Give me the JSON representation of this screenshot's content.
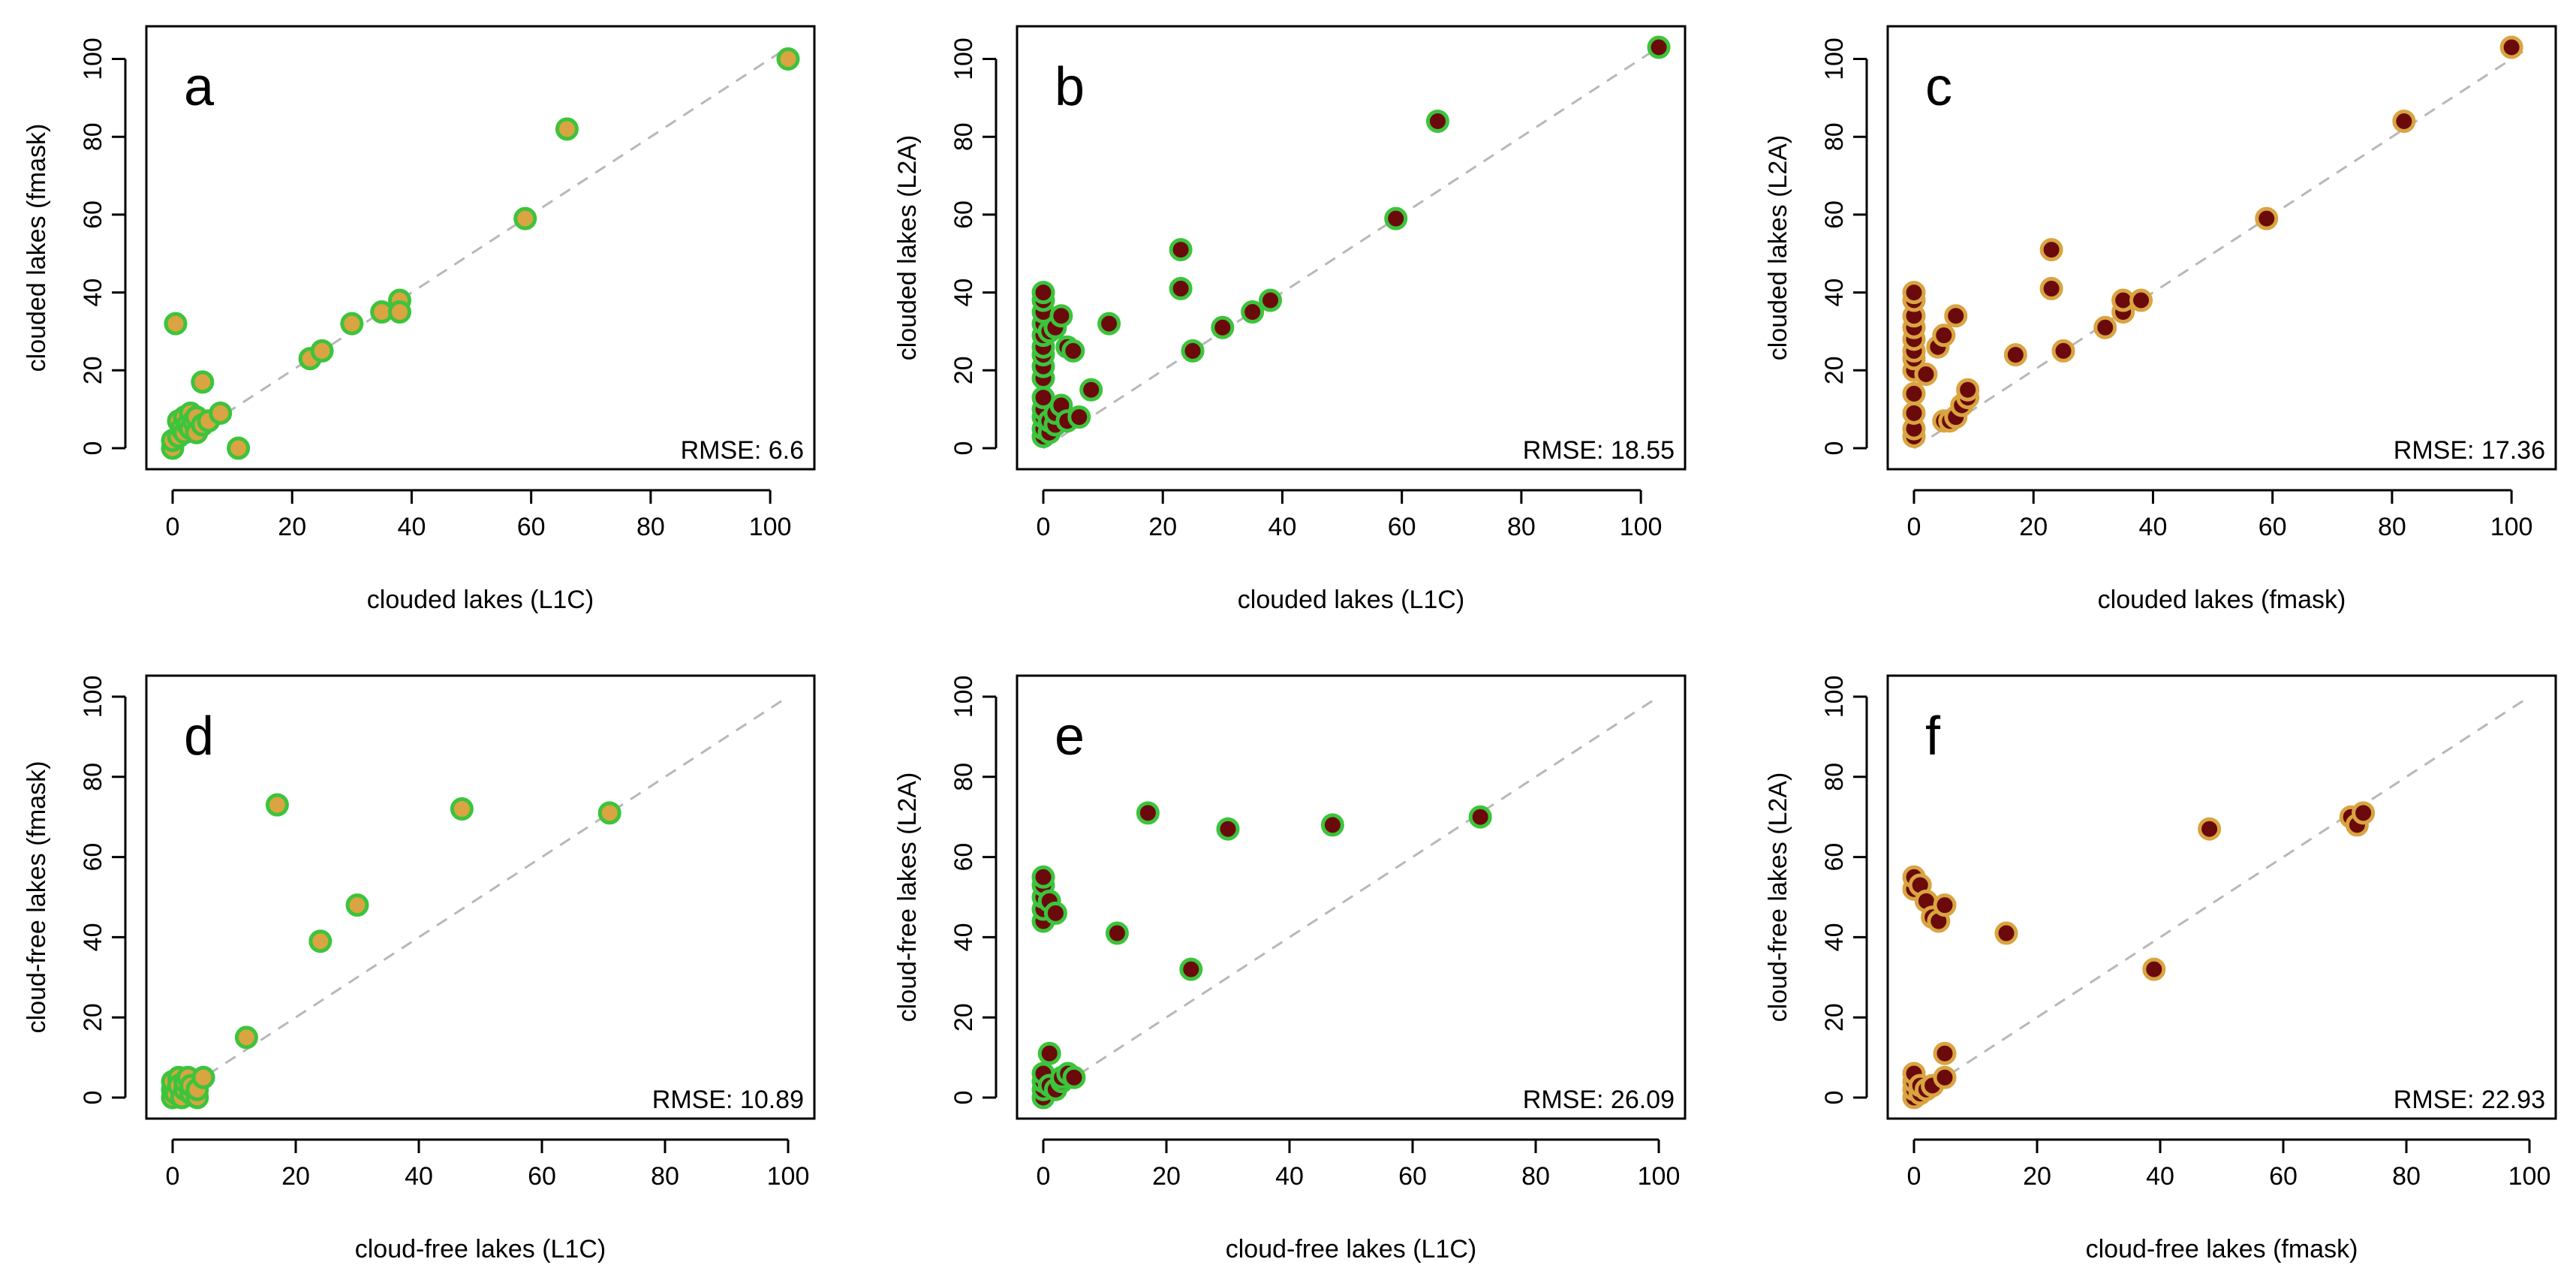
{
  "colors": {
    "green_edge": "#3cc43c",
    "gold_fill": "#d9a441",
    "maroon_fill": "#6b0a0a",
    "gold_edge": "#d9a441",
    "diagonal": "#b8b8b8"
  },
  "chart_data": [
    {
      "type": "scatter",
      "panel": "a",
      "xlabel": "clouded lakes (L1C)",
      "ylabel": "clouded lakes (fmask)",
      "rmse": "RMSE: 6.6",
      "xlim": [
        0,
        103
      ],
      "ylim": [
        0,
        103
      ],
      "xticks": [
        0,
        20,
        40,
        60,
        80,
        100
      ],
      "yticks": [
        0,
        20,
        40,
        60,
        80,
        100
      ],
      "fill": "gold_fill",
      "edge": "green_edge",
      "x": [
        0,
        0,
        0.5,
        1,
        1,
        1.5,
        2,
        2,
        2.5,
        3,
        3,
        3.5,
        4,
        4,
        5,
        5,
        6,
        8,
        11,
        23,
        25,
        30,
        35,
        38,
        38,
        59,
        66,
        103
      ],
      "y": [
        0,
        2,
        32,
        3,
        7,
        5,
        8,
        4,
        6,
        9,
        5,
        7,
        4,
        8,
        17,
        6,
        7,
        9,
        0,
        23,
        25,
        32,
        35,
        38,
        35,
        59,
        82,
        100
      ]
    },
    {
      "type": "scatter",
      "panel": "b",
      "xlabel": "clouded lakes (L1C)",
      "ylabel": "clouded lakes (L2A)",
      "rmse": "RMSE: 18.55",
      "xlim": [
        0,
        103
      ],
      "ylim": [
        0,
        103
      ],
      "xticks": [
        0,
        20,
        40,
        60,
        80,
        100
      ],
      "yticks": [
        0,
        20,
        40,
        60,
        80,
        100
      ],
      "fill": "maroon_fill",
      "edge": "green_edge",
      "x": [
        0,
        0,
        0,
        0,
        0,
        0,
        0,
        0,
        0,
        0,
        0,
        0,
        0,
        0,
        1,
        1,
        1,
        2,
        2,
        2,
        3,
        3,
        4,
        4,
        5,
        6,
        8,
        11,
        23,
        23,
        25,
        30,
        35,
        38,
        59,
        66,
        103
      ],
      "y": [
        3,
        5,
        8,
        10,
        13,
        18,
        21,
        24,
        26,
        29,
        32,
        35,
        38,
        40,
        4,
        7,
        30,
        6,
        9,
        31,
        11,
        34,
        7,
        26,
        25,
        8,
        15,
        32,
        41,
        51,
        25,
        31,
        35,
        38,
        59,
        84,
        103
      ]
    },
    {
      "type": "scatter",
      "panel": "c",
      "xlabel": "clouded lakes (fmask)",
      "ylabel": "clouded lakes (L2A)",
      "rmse": "RMSE: 17.36",
      "xlim": [
        0,
        103
      ],
      "ylim": [
        0,
        103
      ],
      "xticks": [
        0,
        20,
        40,
        60,
        80,
        100
      ],
      "yticks": [
        0,
        20,
        40,
        60,
        80,
        100
      ],
      "fill": "maroon_fill",
      "edge": "gold_edge",
      "x": [
        0,
        0,
        0,
        0,
        0,
        0,
        0,
        0,
        0,
        0,
        0,
        0,
        2,
        4,
        5,
        5,
        6,
        7,
        7,
        8,
        9,
        9,
        17,
        23,
        23,
        25,
        32,
        35,
        35,
        38,
        59,
        82,
        100
      ],
      "y": [
        3,
        5,
        9,
        14,
        20,
        23,
        25,
        28,
        31,
        34,
        38,
        40,
        19,
        26,
        7,
        29,
        7,
        8,
        34,
        11,
        13,
        15,
        24,
        41,
        51,
        25,
        31,
        35,
        38,
        38,
        59,
        84,
        103
      ]
    },
    {
      "type": "scatter",
      "panel": "d",
      "xlabel": "cloud-free lakes (L1C)",
      "ylabel": "cloud-free lakes (fmask)",
      "rmse": "RMSE: 10.89",
      "xlim": [
        0,
        100
      ],
      "ylim": [
        0,
        100
      ],
      "xticks": [
        0,
        20,
        40,
        60,
        80,
        100
      ],
      "yticks": [
        0,
        20,
        40,
        60,
        80,
        100
      ],
      "fill": "gold_fill",
      "edge": "green_edge",
      "x": [
        0,
        0,
        0,
        0.5,
        1,
        1,
        1.5,
        2,
        2,
        2.5,
        3,
        3,
        4,
        4,
        5,
        12,
        17,
        24,
        30,
        47,
        71
      ],
      "y": [
        0,
        2,
        4,
        1,
        5,
        3,
        0,
        2,
        4,
        5,
        1,
        3,
        0,
        2,
        5,
        15,
        73,
        39,
        48,
        72,
        71
      ]
    },
    {
      "type": "scatter",
      "panel": "e",
      "xlabel": "cloud-free lakes (L1C)",
      "ylabel": "cloud-free lakes (L2A)",
      "rmse": "RMSE: 26.09",
      "xlim": [
        0,
        100
      ],
      "ylim": [
        0,
        100
      ],
      "xticks": [
        0,
        20,
        40,
        60,
        80,
        100
      ],
      "yticks": [
        0,
        20,
        40,
        60,
        80,
        100
      ],
      "fill": "maroon_fill",
      "edge": "green_edge",
      "x": [
        0,
        0,
        0,
        0,
        0,
        0,
        0,
        0,
        0,
        1,
        1,
        1,
        2,
        2,
        3,
        3,
        4,
        5,
        12,
        17,
        24,
        30,
        47,
        71
      ],
      "y": [
        0,
        2,
        4,
        6,
        44,
        47,
        50,
        53,
        55,
        3,
        11,
        49,
        2,
        46,
        4,
        5,
        6,
        5,
        41,
        71,
        32,
        67,
        68,
        70
      ]
    },
    {
      "type": "scatter",
      "panel": "f",
      "xlabel": "cloud-free lakes (fmask)",
      "ylabel": "cloud-free lakes (L2A)",
      "rmse": "RMSE: 22.93",
      "xlim": [
        0,
        100
      ],
      "ylim": [
        0,
        100
      ],
      "xticks": [
        0,
        20,
        40,
        60,
        80,
        100
      ],
      "yticks": [
        0,
        20,
        40,
        60,
        80,
        100
      ],
      "fill": "maroon_fill",
      "edge": "gold_edge",
      "x": [
        0,
        0,
        0,
        0,
        0,
        0,
        1,
        1,
        1,
        2,
        2,
        3,
        3,
        4,
        5,
        5,
        5,
        15,
        39,
        48,
        71,
        72,
        73
      ],
      "y": [
        0,
        2,
        4,
        6,
        52,
        55,
        1,
        3,
        53,
        49,
        2,
        45,
        3,
        44,
        48,
        5,
        11,
        41,
        32,
        67,
        70,
        68,
        71
      ]
    }
  ]
}
